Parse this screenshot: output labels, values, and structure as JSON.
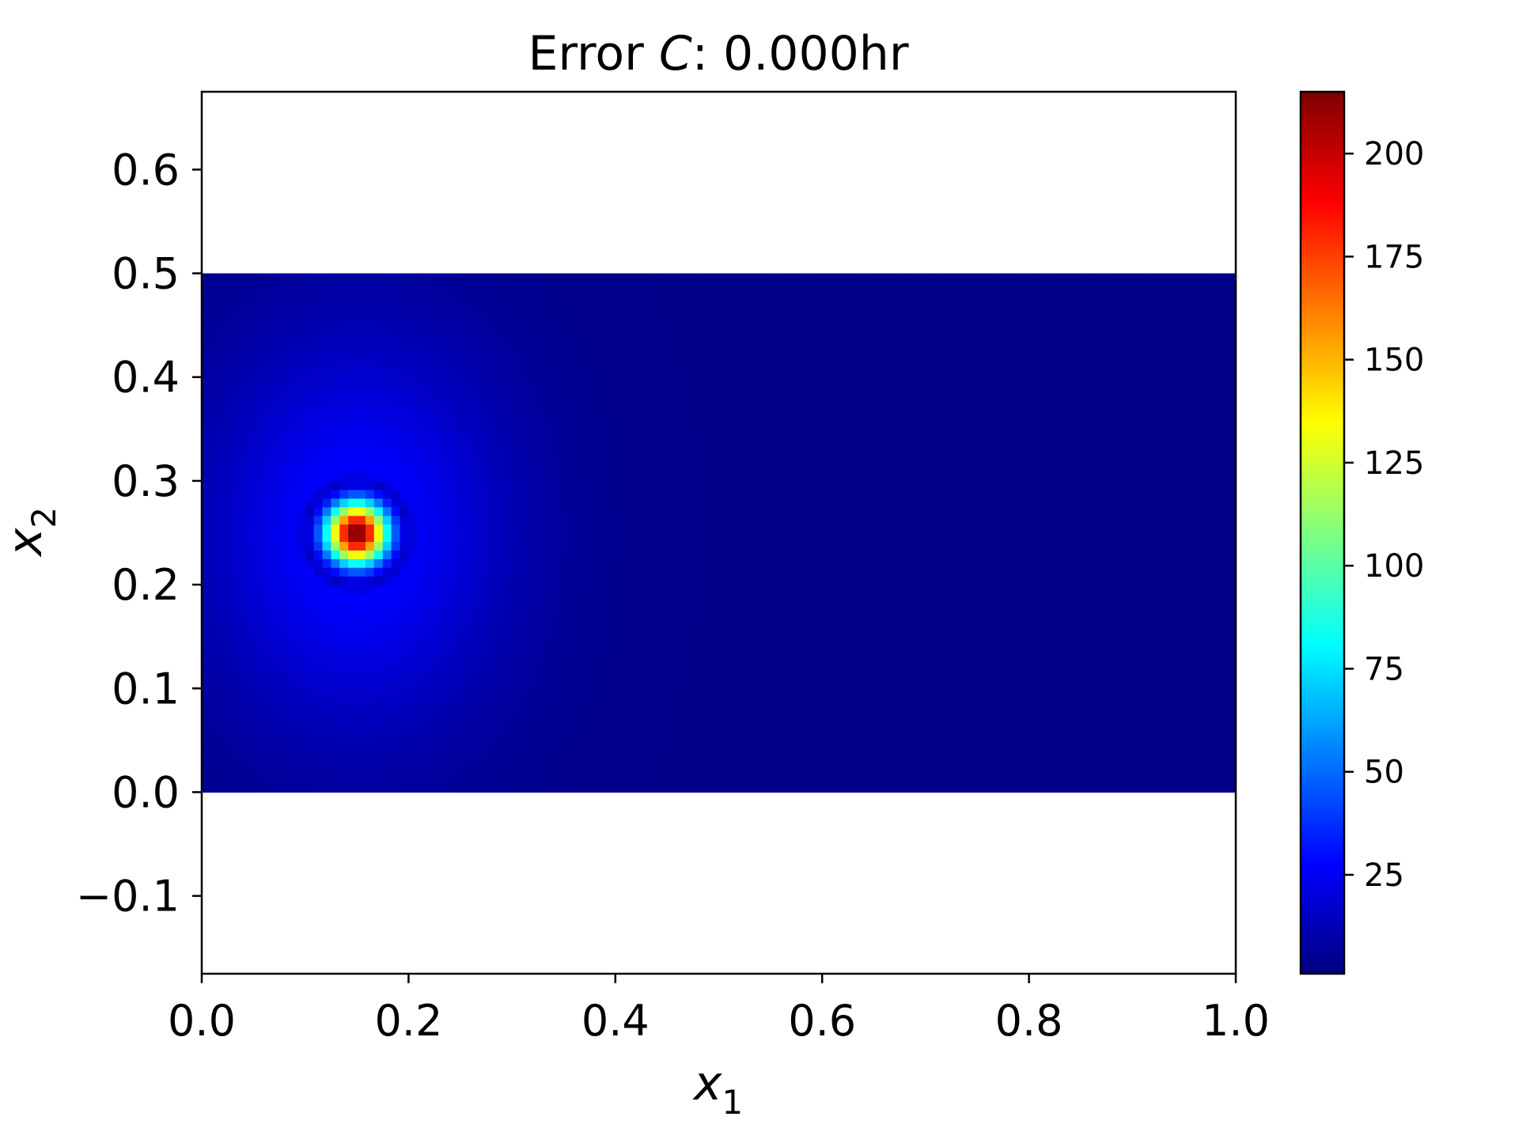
{
  "chart_data": {
    "type": "heatmap",
    "title": {
      "prefix": "Error ",
      "variable": "C",
      "suffix": ": 0.000hr"
    },
    "xlabel": {
      "symbol": "x",
      "subscript": "1"
    },
    "ylabel": {
      "symbol": "x",
      "subscript": "2"
    },
    "xlim": [
      0.0,
      1.0
    ],
    "ylim": [
      -0.175,
      0.675
    ],
    "xticks": [
      0.0,
      0.2,
      0.4,
      0.6,
      0.8,
      1.0
    ],
    "xtick_labels": [
      "0.0",
      "0.2",
      "0.4",
      "0.6",
      "0.8",
      "1.0"
    ],
    "yticks": [
      -0.1,
      0.0,
      0.1,
      0.2,
      0.3,
      0.4,
      0.5,
      0.6
    ],
    "ytick_labels": [
      "−0.1",
      "0.0",
      "0.1",
      "0.2",
      "0.3",
      "0.4",
      "0.5",
      "0.6"
    ],
    "domain": {
      "x": [
        0.0,
        1.0
      ],
      "y": [
        0.0,
        0.5
      ]
    },
    "peak": {
      "x": 0.15,
      "y": 0.25,
      "value": 215
    },
    "background_value": 3,
    "halo_value": 28,
    "colormap": "jet",
    "colorbar": {
      "range": [
        1,
        215
      ],
      "ticks": [
        25,
        50,
        75,
        100,
        125,
        150,
        175,
        200
      ],
      "tick_labels": [
        "25",
        "50",
        "75",
        "100",
        "125",
        "150",
        "175",
        "200"
      ]
    },
    "grid": false
  }
}
